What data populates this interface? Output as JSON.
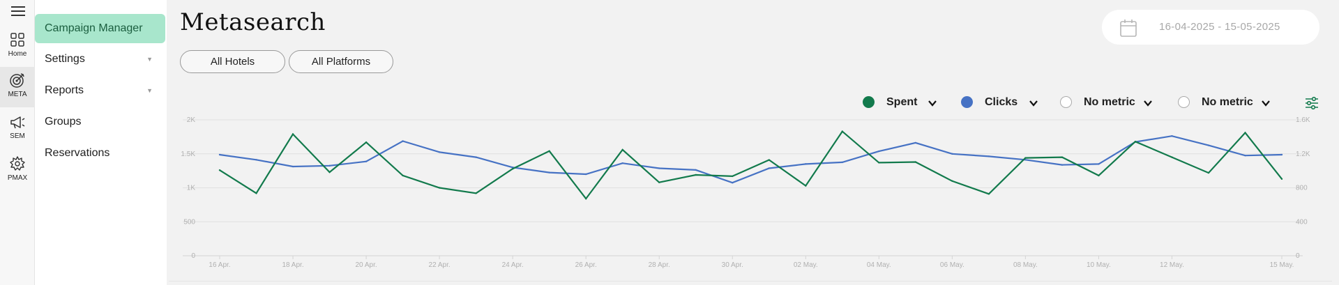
{
  "rail": {
    "items": [
      {
        "label": "Home",
        "icon": "grid-icon"
      },
      {
        "label": "META",
        "icon": "target-icon",
        "active": true
      },
      {
        "label": "SEM",
        "icon": "megaphone-icon"
      },
      {
        "label": "PMAX",
        "icon": "pmax-icon"
      }
    ]
  },
  "sidebar": {
    "items": [
      {
        "label": "Campaign Manager",
        "active": true
      },
      {
        "label": "Settings",
        "has_dropdown": true
      },
      {
        "label": "Reports",
        "has_dropdown": true
      },
      {
        "label": "Groups"
      },
      {
        "label": "Reservations"
      }
    ]
  },
  "header": {
    "title": "Metasearch",
    "date_range": "16-04-2025 - 15-05-2025"
  },
  "filters": {
    "hotels": "All Hotels",
    "platforms": "All Platforms"
  },
  "metrics": [
    {
      "label": "Spent",
      "color": "#127a4c",
      "selected": true
    },
    {
      "label": "Clicks",
      "color": "#4672c4",
      "selected": true
    },
    {
      "label": "No metric",
      "selected": false
    },
    {
      "label": "No metric",
      "selected": false
    }
  ],
  "colors": {
    "accent": "#a8e6cc",
    "spent": "#127a4c",
    "clicks": "#4672c4"
  },
  "chart_data": {
    "type": "line",
    "x": [
      "16 Apr.",
      "17 Apr.",
      "18 Apr.",
      "19 Apr.",
      "20 Apr.",
      "21 Apr.",
      "22 Apr.",
      "23 Apr.",
      "24 Apr.",
      "25 Apr.",
      "26 Apr.",
      "27 Apr.",
      "28 Apr.",
      "29 Apr.",
      "30 Apr.",
      "01 May.",
      "02 May.",
      "03 May.",
      "04 May.",
      "05 May.",
      "06 May.",
      "07 May.",
      "08 May.",
      "09 May.",
      "10 May.",
      "11 May.",
      "12 May.",
      "13 May.",
      "14 May.",
      "15 May."
    ],
    "x_tick_labels": [
      "16 Apr.",
      "18 Apr.",
      "20 Apr.",
      "22 Apr.",
      "24 Apr.",
      "26 Apr.",
      "28 Apr.",
      "30 Apr.",
      "02 May.",
      "04 May.",
      "06 May.",
      "08 May.",
      "10 May.",
      "12 May.",
      "15 May."
    ],
    "series": [
      {
        "name": "Spent",
        "axis": "left",
        "color": "#127a4c",
        "values": [
          1260,
          920,
          1790,
          1230,
          1670,
          1180,
          1000,
          920,
          1280,
          1540,
          840,
          1560,
          1080,
          1190,
          1170,
          1410,
          1030,
          1830,
          1370,
          1380,
          1100,
          910,
          1440,
          1450,
          1180,
          1680,
          1450,
          1220,
          1810,
          1130
        ]
      },
      {
        "name": "Clicks",
        "axis": "right",
        "color": "#4672c4",
        "values": [
          1190,
          1130,
          1050,
          1060,
          1110,
          1350,
          1220,
          1160,
          1040,
          980,
          960,
          1090,
          1030,
          1010,
          860,
          1030,
          1080,
          1100,
          1230,
          1330,
          1200,
          1170,
          1130,
          1070,
          1080,
          1340,
          1410,
          1300,
          1180,
          1190
        ]
      }
    ],
    "y_left": {
      "ticks": [
        "0",
        "500",
        "1K",
        "1.5K",
        "2K"
      ],
      "range": [
        0,
        2000
      ]
    },
    "y_right": {
      "ticks": [
        "0",
        "400",
        "800",
        "1.2K",
        "1.6K"
      ],
      "range": [
        0,
        1600
      ]
    },
    "grid": true
  }
}
